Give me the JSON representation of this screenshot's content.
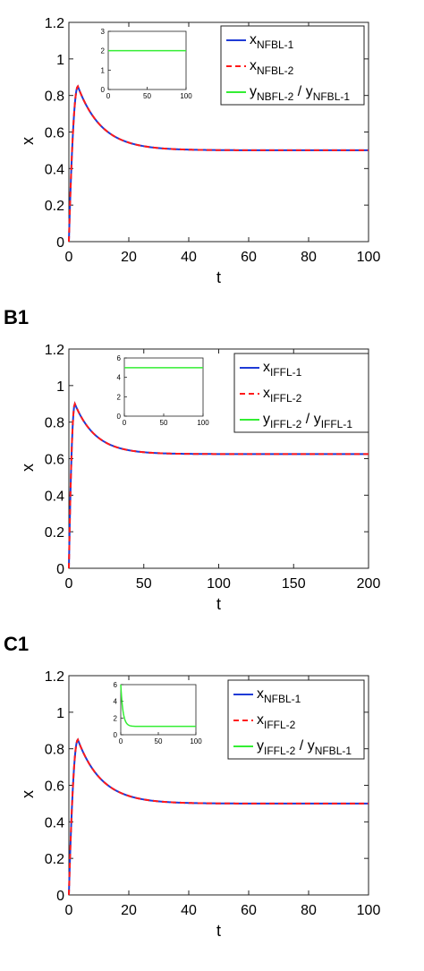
{
  "chart_data": [
    {
      "panel_label": "",
      "type": "line",
      "xlabel": "t",
      "ylabel": "x",
      "xlim": [
        0,
        100
      ],
      "ylim": [
        0,
        1.2
      ],
      "xticks": [
        "0",
        "20",
        "40",
        "60",
        "80",
        "100"
      ],
      "yticks": [
        "0",
        "0.2",
        "0.4",
        "0.6",
        "0.8",
        "1",
        "1.2"
      ],
      "curve": {
        "peak_t": 3,
        "peak_x": 0.85,
        "steady_x": 0.5,
        "decay_tau": 8
      },
      "legend": {
        "placement": "top-right",
        "entries": [
          {
            "base": "x",
            "sub": "NFBL-1",
            "base2": "",
            "sub2": "",
            "color": "#1f3bd6",
            "dash": ""
          },
          {
            "base": "x",
            "sub": "NFBL-2",
            "base2": "",
            "sub2": "",
            "color": "#ff1a1a",
            "dash": "6,4"
          },
          {
            "base": "y",
            "sub": "NBFL-2",
            "base2": "y",
            "sub2": "NFBL-1",
            "color": "#33ee33",
            "dash": ""
          }
        ]
      },
      "series": [
        {
          "name": "xNFBL-1",
          "color": "#1f3bd6"
        },
        {
          "name": "xNFBL-2",
          "color": "#ff1a1a"
        }
      ],
      "inset": {
        "xlim": [
          0,
          100
        ],
        "ylim": [
          0,
          3
        ],
        "xticks": [
          "0",
          "50",
          "100"
        ],
        "yticks": [
          "0",
          "1",
          "2",
          "3"
        ],
        "ratio": {
          "steady": 2,
          "start": 2
        },
        "color": "#33ee33"
      }
    },
    {
      "panel_label": "B1",
      "type": "line",
      "xlabel": "t",
      "ylabel": "x",
      "xlim": [
        0,
        200
      ],
      "ylim": [
        0,
        1.2
      ],
      "xticks": [
        "0",
        "50",
        "100",
        "150",
        "200"
      ],
      "yticks": [
        "0",
        "0.2",
        "0.4",
        "0.6",
        "0.8",
        "1",
        "1.2"
      ],
      "curve": {
        "peak_t": 4,
        "peak_x": 0.9,
        "steady_x": 0.625,
        "decay_tau": 14
      },
      "legend": {
        "placement": "top-right",
        "entries": [
          {
            "base": "x",
            "sub": "IFFL-1",
            "base2": "",
            "sub2": "",
            "color": "#1f3bd6",
            "dash": ""
          },
          {
            "base": "x",
            "sub": "IFFL-2",
            "base2": "",
            "sub2": "",
            "color": "#ff1a1a",
            "dash": "6,4"
          },
          {
            "base": "y",
            "sub": "IFFL-2",
            "base2": "y",
            "sub2": "IFFL-1",
            "color": "#33ee33",
            "dash": ""
          }
        ]
      },
      "series": [
        {
          "name": "xIFFL-1",
          "color": "#1f3bd6"
        },
        {
          "name": "xIFFL-2",
          "color": "#ff1a1a"
        }
      ],
      "inset": {
        "xlim": [
          0,
          100
        ],
        "ylim": [
          0,
          6
        ],
        "xticks": [
          "0",
          "50",
          "100"
        ],
        "yticks": [
          "0",
          "2",
          "4",
          "6"
        ],
        "ratio": {
          "steady": 5,
          "start": 5
        },
        "color": "#33ee33"
      }
    },
    {
      "panel_label": "C1",
      "type": "line",
      "xlabel": "t",
      "ylabel": "x",
      "xlim": [
        0,
        100
      ],
      "ylim": [
        0,
        1.2
      ],
      "xticks": [
        "0",
        "20",
        "40",
        "60",
        "80",
        "100"
      ],
      "yticks": [
        "0",
        "0.2",
        "0.4",
        "0.6",
        "0.8",
        "1",
        "1.2"
      ],
      "curve": {
        "peak_t": 3,
        "peak_x": 0.85,
        "steady_x": 0.5,
        "decay_tau": 8
      },
      "legend": {
        "placement": "top-right",
        "entries": [
          {
            "base": "x",
            "sub": "NFBL-1",
            "base2": "",
            "sub2": "",
            "color": "#1f3bd6",
            "dash": ""
          },
          {
            "base": "x",
            "sub": "IFFL-2",
            "base2": "",
            "sub2": "",
            "color": "#ff1a1a",
            "dash": "6,4"
          },
          {
            "base": "y",
            "sub": "IFFL-2",
            "base2": "y",
            "sub2": "NFBL-1",
            "color": "#33ee33",
            "dash": ""
          }
        ]
      },
      "series": [
        {
          "name": "xNFBL-1",
          "color": "#1f3bd6"
        },
        {
          "name": "xIFFL-2",
          "color": "#ff1a1a"
        }
      ],
      "inset": {
        "xlim": [
          0,
          100
        ],
        "ylim": [
          0,
          6
        ],
        "xticks": [
          "0",
          "50",
          "100"
        ],
        "yticks": [
          "0",
          "2",
          "4",
          "6"
        ],
        "ratio": {
          "steady": 1,
          "start": 6,
          "decay_tau": 3
        },
        "color": "#33ee33"
      }
    }
  ]
}
